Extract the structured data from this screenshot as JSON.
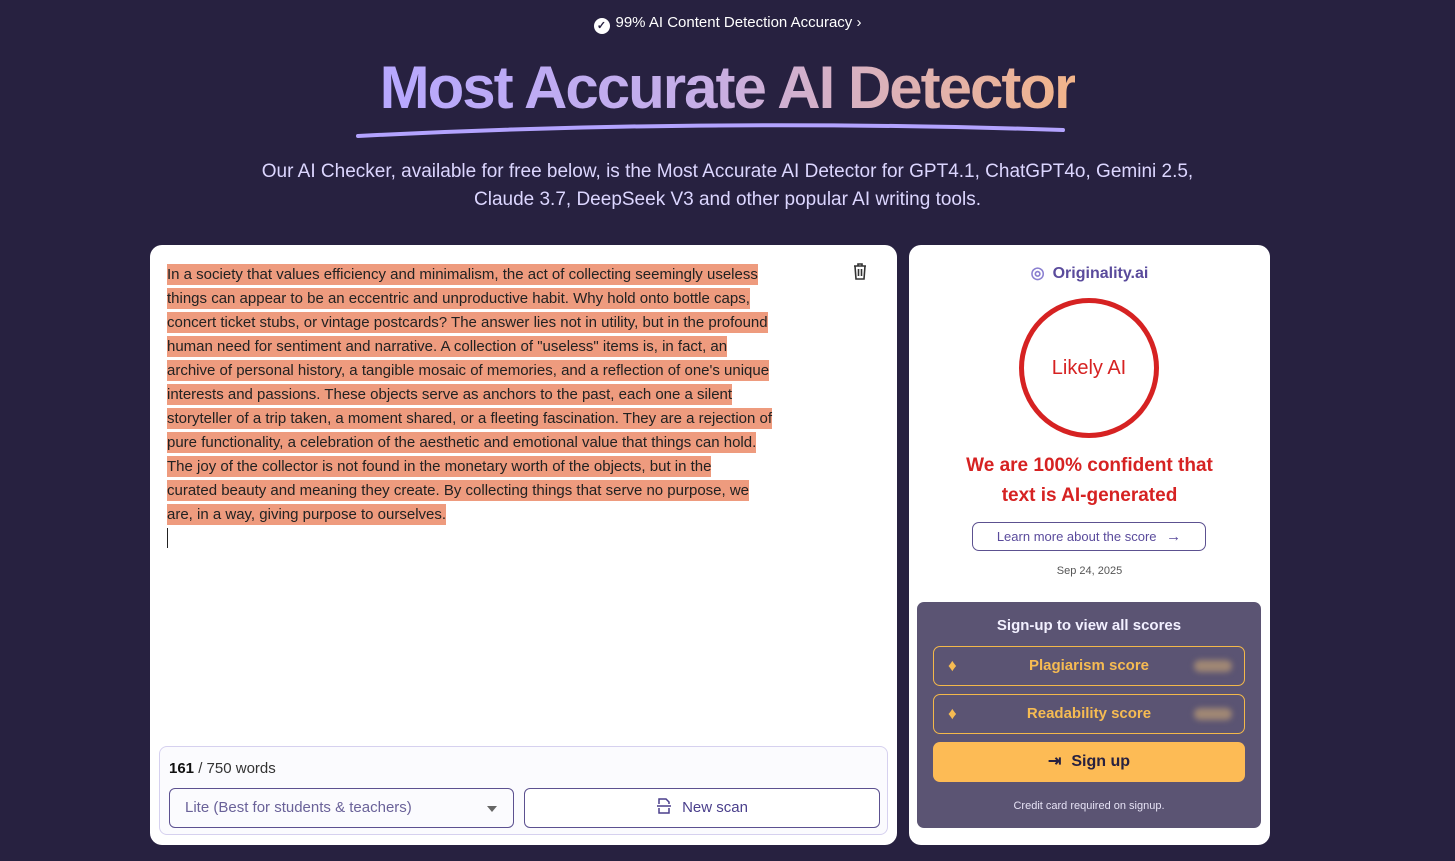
{
  "header": {
    "badge": "99% AI Content Detection Accuracy",
    "badge_chevron": "›",
    "title": "Most Accurate AI Detector",
    "subtitle_lines": [
      "Our AI Checker, available for free below, is the Most Accurate AI Detector for GPT4.1, ChatGPT4o, Gemini 2.5,",
      "Claude 3.7, DeepSeek V3 and other popular AI writing tools."
    ]
  },
  "editor": {
    "lines": [
      "In a society that values efficiency and minimalism, the act of collecting seemingly useless",
      "things can appear to be an eccentric and unproductive habit. Why hold onto bottle caps,",
      "concert ticket stubs, or vintage postcards? The answer lies not in utility, but in the profound",
      "human need for sentiment and narrative. A collection of \"useless\" items is, in fact, an",
      "archive of personal history, a tangible mosaic of memories, and a reflection of one's unique",
      "interests and passions. These objects serve as anchors to the past, each one a silent",
      "storyteller of a trip taken, a moment shared, or a fleeting fascination. They are a rejection of",
      "pure functionality, a celebration of the aesthetic and emotional value that things can hold.",
      "The joy of the collector is not found in the monetary worth of the objects, but in the",
      "curated beauty and meaning they create. By collecting things that serve no purpose, we",
      "are, in a way, giving purpose to ourselves."
    ],
    "highlight_color": "#ee9b7e",
    "word_count": "161",
    "word_limit": "/ 750 words",
    "model_select": "Lite (Best for students & teachers)",
    "new_scan": "New scan"
  },
  "result": {
    "brand": "Originality.ai",
    "verdict": "Likely AI",
    "confidence_lines": [
      "We are 100% confident that",
      "text is AI-generated"
    ],
    "learn_more": "Learn more about the score",
    "learn_more_arrow": "→",
    "date": "Sep 24, 2025",
    "accent": "#d62222"
  },
  "signup": {
    "title": "Sign-up to view all scores",
    "scores": [
      "Plagiarism score",
      "Readability score"
    ],
    "button": "Sign up",
    "note": "Credit card required on signup."
  }
}
